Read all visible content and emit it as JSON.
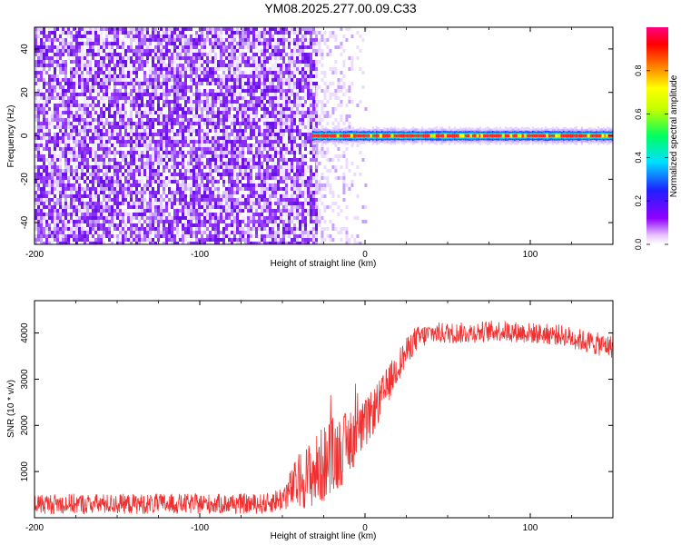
{
  "title": "YM08.2025.277.00.09.C33",
  "chart_data": [
    {
      "type": "heatmap",
      "title": "",
      "xlabel": "Height of straight line (km)",
      "ylabel": "Frequency (Hz)",
      "xlim": [
        -200,
        150
      ],
      "ylim": [
        -50,
        50
      ],
      "xticks": [
        -200,
        -100,
        0,
        100
      ],
      "yticks": [
        -40,
        -20,
        0,
        20,
        40
      ],
      "noise_region_x": [
        -200,
        -30
      ],
      "sparse_noise_x": [
        -30,
        0
      ],
      "tone_frequency_hz": 0,
      "tone_x_range": [
        -32,
        150
      ],
      "colorbar": {
        "label": "Normalized spectral amplitude",
        "range": [
          0,
          1
        ],
        "ticks": [
          "0.0",
          "0.2",
          "0.4",
          "0.6",
          "0.8"
        ],
        "colormap": [
          "#ffffff",
          "#8b00ff",
          "#0000ff",
          "#00ffff",
          "#00ff00",
          "#ffff00",
          "#ff8000",
          "#ff0000",
          "#ff00cc"
        ]
      },
      "noise_color": "#7b2ff0"
    },
    {
      "type": "line",
      "title": "",
      "xlabel": "Height of straight line (km)",
      "ylabel": "SNR (10 * v/v)",
      "xlim": [
        -200,
        150
      ],
      "ylim": [
        0,
        4700
      ],
      "xticks": [
        -200,
        -100,
        0,
        100
      ],
      "yticks": [
        1000,
        2000,
        3000,
        4000
      ],
      "series": [
        {
          "color": "#f03030",
          "envelope": {
            "x": [
              -200,
              -150,
              -100,
              -60,
              -50,
              -40,
              -30,
              -20,
              -10,
              0,
              10,
              20,
              30,
              40,
              60,
              80,
              100,
              120,
              135,
              150
            ],
            "mean": [
              300,
              300,
              300,
              300,
              420,
              800,
              1000,
              1300,
              1600,
              2000,
              2600,
              3300,
              3850,
              4000,
              4000,
              4050,
              4000,
              3950,
              3800,
              3700
            ],
            "spread": [
              220,
              220,
              220,
              220,
              280,
              600,
              800,
              900,
              700,
              550,
              450,
              350,
              280,
              230,
              230,
              230,
              230,
              230,
              250,
              250
            ]
          }
        }
      ]
    }
  ]
}
